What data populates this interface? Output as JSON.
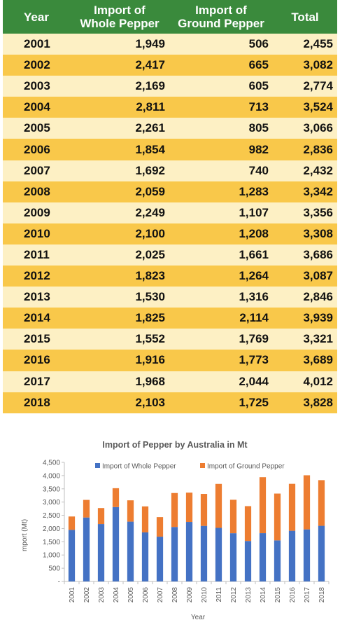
{
  "table": {
    "headers": [
      "Year",
      "Import of Whole Pepper",
      "Import of Ground Pepper",
      "Total"
    ],
    "header_lines": {
      "year": "Year",
      "whole_1": "Import of",
      "whole_2": "Whole Pepper",
      "ground_1": "Import of",
      "ground_2": "Ground Pepper",
      "total": "Total"
    },
    "rows": [
      [
        "2001",
        "1,949",
        "506",
        "2,455"
      ],
      [
        "2002",
        "2,417",
        "665",
        "3,082"
      ],
      [
        "2003",
        "2,169",
        "605",
        "2,774"
      ],
      [
        "2004",
        "2,811",
        "713",
        "3,524"
      ],
      [
        "2005",
        "2,261",
        "805",
        "3,066"
      ],
      [
        "2006",
        "1,854",
        "982",
        "2,836"
      ],
      [
        "2007",
        "1,692",
        "740",
        "2,432"
      ],
      [
        "2008",
        "2,059",
        "1,283",
        "3,342"
      ],
      [
        "2009",
        "2,249",
        "1,107",
        "3,356"
      ],
      [
        "2010",
        "2,100",
        "1,208",
        "3,308"
      ],
      [
        "2011",
        "2,025",
        "1,661",
        "3,686"
      ],
      [
        "2012",
        "1,823",
        "1,264",
        "3,087"
      ],
      [
        "2013",
        "1,530",
        "1,316",
        "2,846"
      ],
      [
        "2014",
        "1,825",
        "2,114",
        "3,939"
      ],
      [
        "2015",
        "1,552",
        "1,769",
        "3,321"
      ],
      [
        "2016",
        "1,916",
        "1,773",
        "3,689"
      ],
      [
        "2017",
        "1,968",
        "2,044",
        "4,012"
      ],
      [
        "2018",
        "2,103",
        "1,725",
        "3,828"
      ]
    ],
    "colors": {
      "header": "#3a8a3c",
      "row_light": "#fdf0c4",
      "row_dark": "#f9c84a"
    }
  },
  "chart_data": {
    "type": "bar",
    "stacked": true,
    "title": "Import of Pepper by Australia in Mt",
    "xlabel": "Year",
    "ylabel": "mport (Mt)",
    "categories": [
      "2001",
      "2002",
      "2003",
      "2004",
      "2005",
      "2006",
      "2007",
      "2008",
      "2009",
      "2010",
      "2011",
      "2012",
      "2013",
      "2014",
      "2015",
      "2016",
      "2017",
      "2018"
    ],
    "series": [
      {
        "name": "Import of Whole Pepper",
        "color": "#4472c4",
        "values": [
          1949,
          2417,
          2169,
          2811,
          2261,
          1854,
          1692,
          2059,
          2249,
          2100,
          2025,
          1823,
          1530,
          1825,
          1552,
          1916,
          1968,
          2103
        ]
      },
      {
        "name": "Import of Ground Pepper",
        "color": "#ed7d31",
        "values": [
          506,
          665,
          605,
          713,
          805,
          982,
          740,
          1283,
          1107,
          1208,
          1661,
          1264,
          1316,
          2114,
          1769,
          1773,
          2044,
          1725
        ]
      }
    ],
    "ylim": [
      0,
      4500
    ],
    "yticks": [
      "-",
      "500",
      "1,000",
      "1,500",
      "2,000",
      "2,500",
      "3,000",
      "3,500",
      "4,000",
      "4,500"
    ],
    "legend_position": "top",
    "grid": false
  }
}
